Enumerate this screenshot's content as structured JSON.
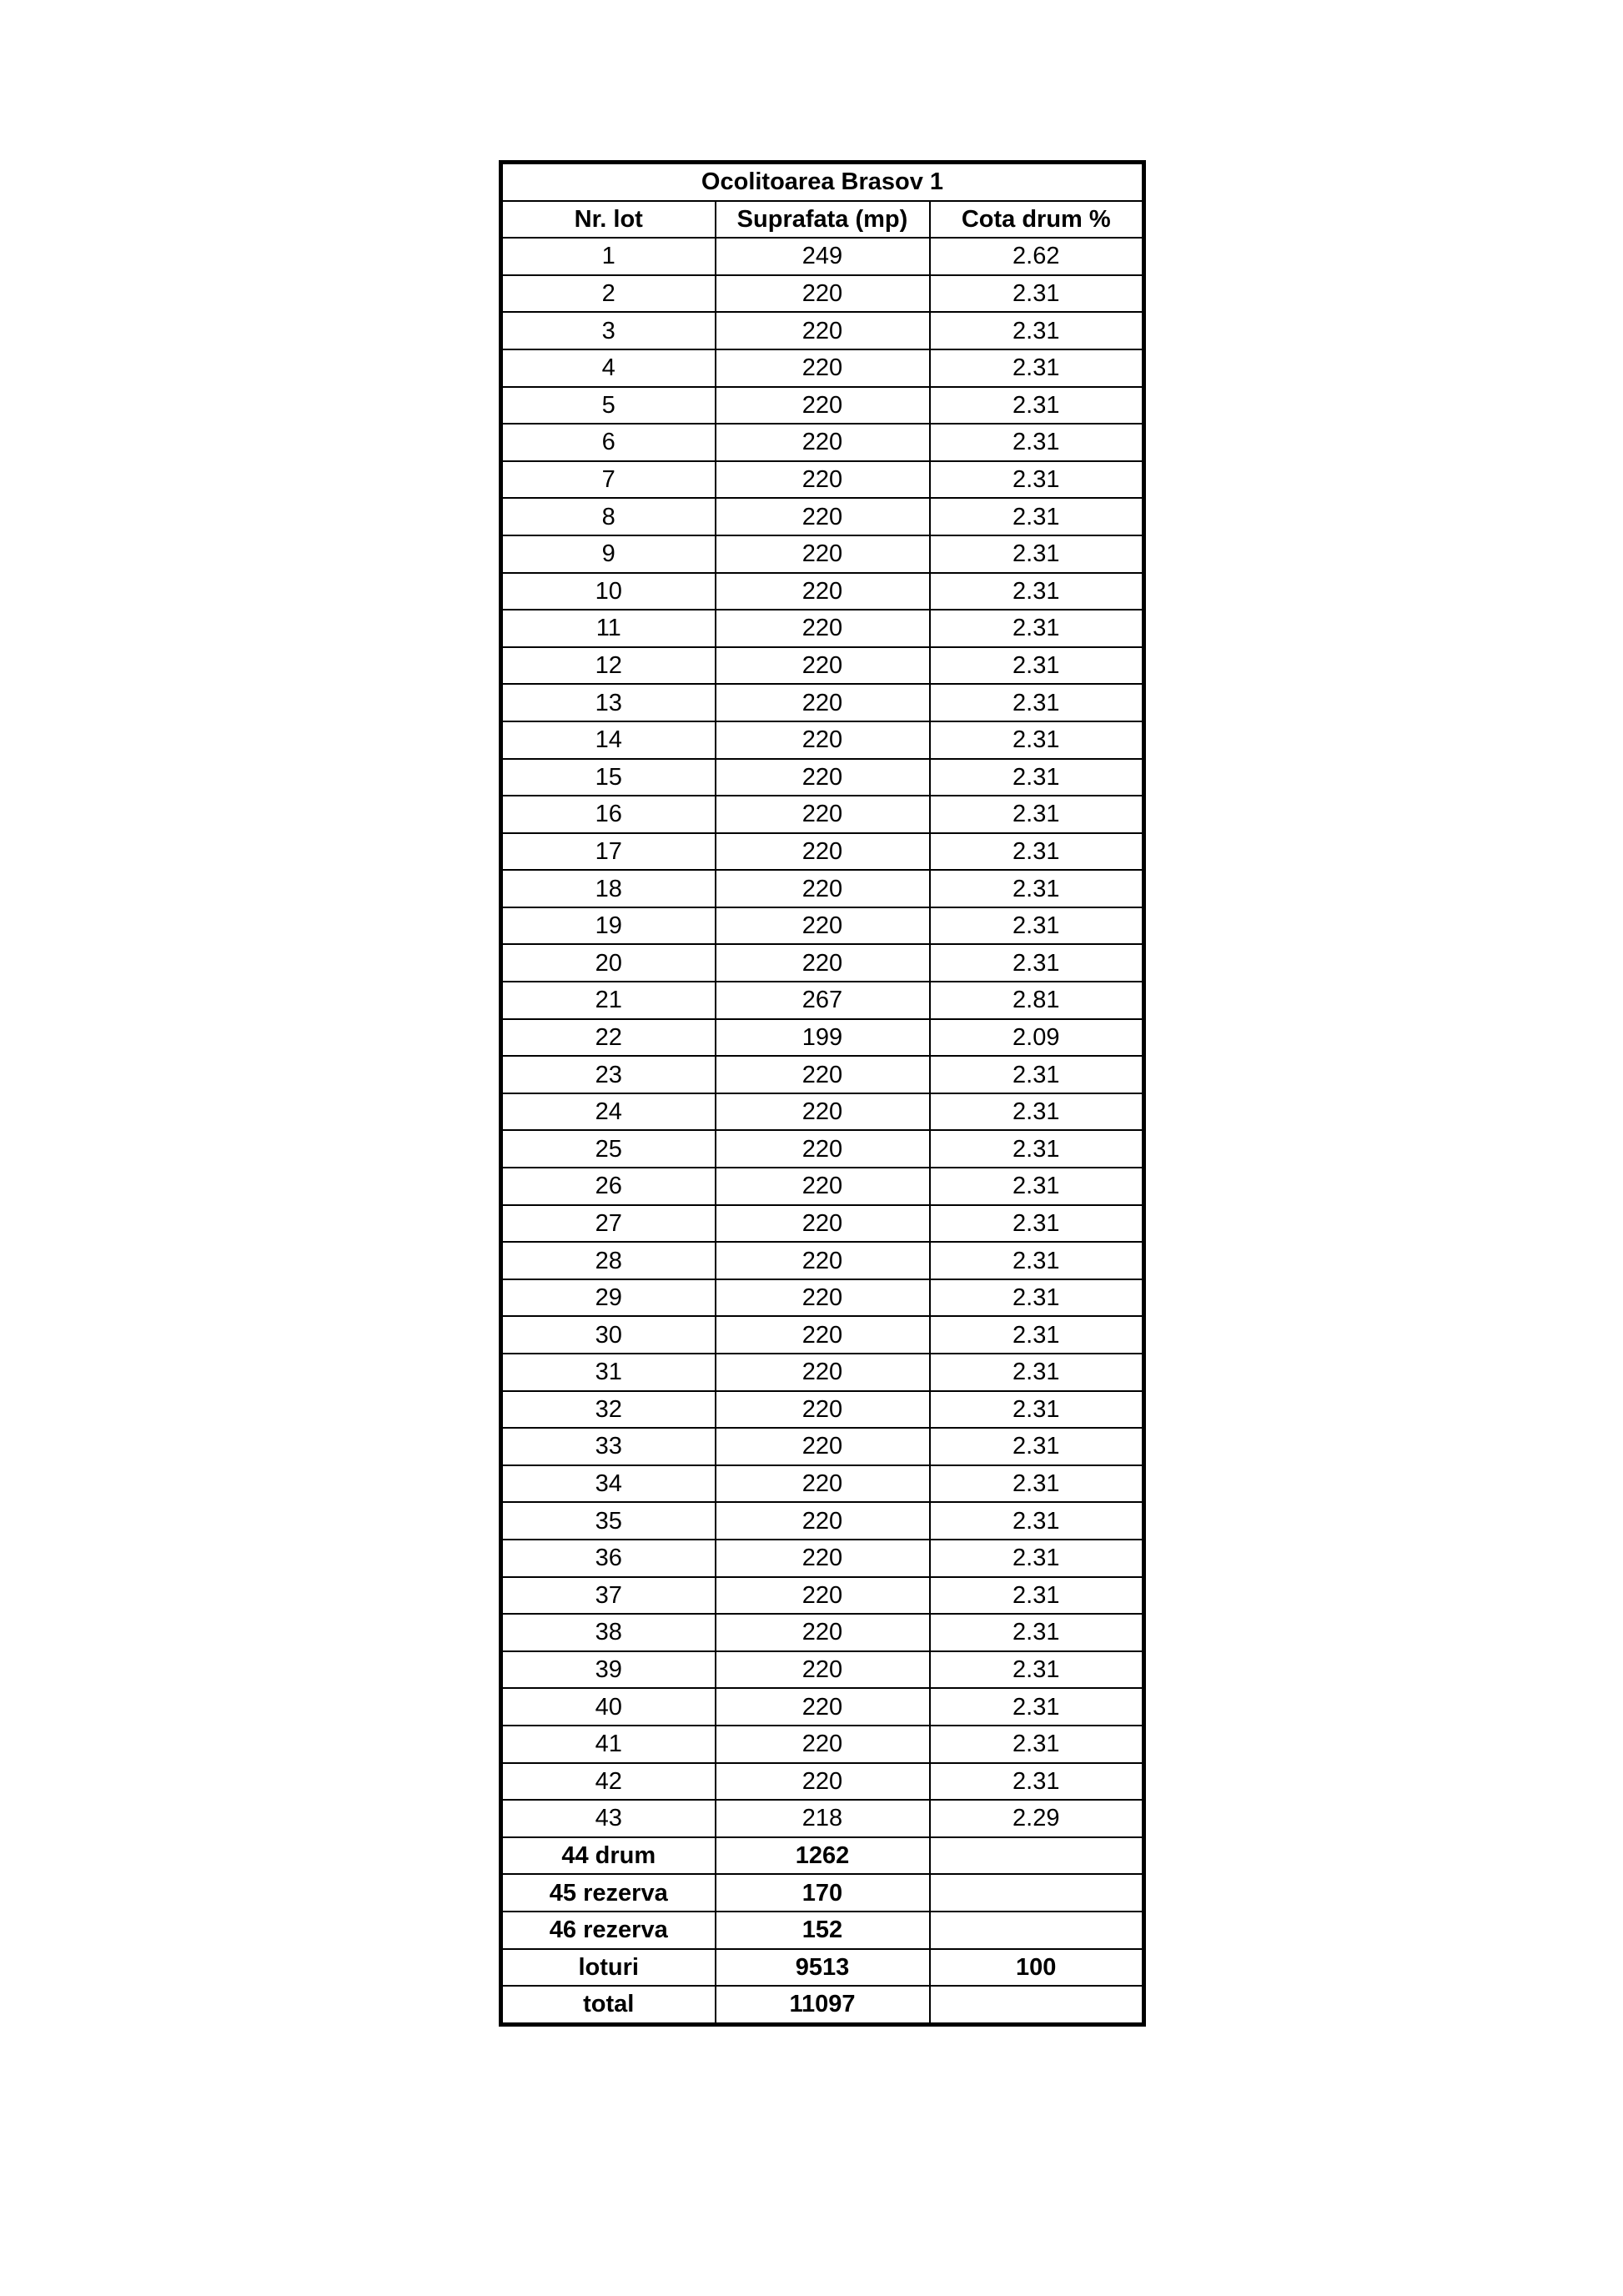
{
  "title": "Ocolitoarea Brasov 1",
  "headers": [
    "Nr. lot",
    "Suprafata (mp)",
    "Cota drum %"
  ],
  "rows": [
    [
      "1",
      "249",
      "2.62"
    ],
    [
      "2",
      "220",
      "2.31"
    ],
    [
      "3",
      "220",
      "2.31"
    ],
    [
      "4",
      "220",
      "2.31"
    ],
    [
      "5",
      "220",
      "2.31"
    ],
    [
      "6",
      "220",
      "2.31"
    ],
    [
      "7",
      "220",
      "2.31"
    ],
    [
      "8",
      "220",
      "2.31"
    ],
    [
      "9",
      "220",
      "2.31"
    ],
    [
      "10",
      "220",
      "2.31"
    ],
    [
      "11",
      "220",
      "2.31"
    ],
    [
      "12",
      "220",
      "2.31"
    ],
    [
      "13",
      "220",
      "2.31"
    ],
    [
      "14",
      "220",
      "2.31"
    ],
    [
      "15",
      "220",
      "2.31"
    ],
    [
      "16",
      "220",
      "2.31"
    ],
    [
      "17",
      "220",
      "2.31"
    ],
    [
      "18",
      "220",
      "2.31"
    ],
    [
      "19",
      "220",
      "2.31"
    ],
    [
      "20",
      "220",
      "2.31"
    ],
    [
      "21",
      "267",
      "2.81"
    ],
    [
      "22",
      "199",
      "2.09"
    ],
    [
      "23",
      "220",
      "2.31"
    ],
    [
      "24",
      "220",
      "2.31"
    ],
    [
      "25",
      "220",
      "2.31"
    ],
    [
      "26",
      "220",
      "2.31"
    ],
    [
      "27",
      "220",
      "2.31"
    ],
    [
      "28",
      "220",
      "2.31"
    ],
    [
      "29",
      "220",
      "2.31"
    ],
    [
      "30",
      "220",
      "2.31"
    ],
    [
      "31",
      "220",
      "2.31"
    ],
    [
      "32",
      "220",
      "2.31"
    ],
    [
      "33",
      "220",
      "2.31"
    ],
    [
      "34",
      "220",
      "2.31"
    ],
    [
      "35",
      "220",
      "2.31"
    ],
    [
      "36",
      "220",
      "2.31"
    ],
    [
      "37",
      "220",
      "2.31"
    ],
    [
      "38",
      "220",
      "2.31"
    ],
    [
      "39",
      "220",
      "2.31"
    ],
    [
      "40",
      "220",
      "2.31"
    ],
    [
      "41",
      "220",
      "2.31"
    ],
    [
      "42",
      "220",
      "2.31"
    ],
    [
      "43",
      "218",
      "2.29"
    ]
  ],
  "summary_rows": [
    [
      "44 drum",
      "1262",
      ""
    ],
    [
      "45 rezerva",
      "170",
      ""
    ],
    [
      "46 rezerva",
      "152",
      ""
    ],
    [
      "loturi",
      "9513",
      "100"
    ],
    [
      "total",
      "11097",
      ""
    ]
  ]
}
